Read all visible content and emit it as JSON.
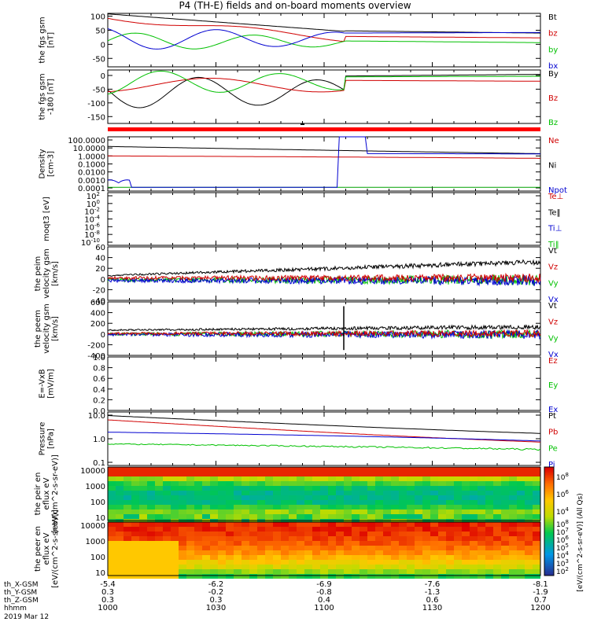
{
  "title": "P4 (TH-E) fields and on-board moments overview",
  "date_label": "2019 Mar 12",
  "ephemeris": {
    "row_labels": [
      "th_X-GSM",
      "th_Y-GSM",
      "th_Z-GSM",
      "hhmm"
    ],
    "columns": [
      {
        "x": "-5.4",
        "y": "0.3",
        "z": "0.3",
        "hhmm": "1000"
      },
      {
        "x": "-6.2",
        "y": "-0.2",
        "z": "0.3",
        "hhmm": "1030"
      },
      {
        "x": "-6.9",
        "y": "-0.8",
        "z": "0.4",
        "hhmm": "1100"
      },
      {
        "x": "-7.6",
        "y": "-1.3",
        "z": "0.6",
        "hhmm": "1130"
      },
      {
        "x": "-8.1",
        "y": "-1.9",
        "z": "0.7",
        "hhmm": "1200"
      }
    ]
  },
  "colorbar": {
    "label": "[eV/(cm^2-s-sr-eV)] (All Qs)",
    "ticks_top": [
      "10^8",
      "10^6",
      "10^4"
    ],
    "ticks_bottom": [
      "10^8",
      "10^7",
      "10^6",
      "10^5",
      "10^4",
      "10^3",
      "10^2"
    ]
  },
  "chart_data": [
    {
      "type": "line",
      "ylabel": "the fgs gsm [nT]",
      "ylim": [
        -80,
        110
      ],
      "yticks": [
        "100",
        "50",
        "0",
        "-50"
      ],
      "legend": [
        {
          "name": "Bt",
          "color": "#000000"
        },
        {
          "name": "bz",
          "color": "#d00000"
        },
        {
          "name": "by",
          "color": "#00c000"
        },
        {
          "name": "bx",
          "color": "#0000d0"
        }
      ]
    },
    {
      "type": "line",
      "ylabel": "the fgs gsm -180 [nT]",
      "ylim": [
        -175,
        20
      ],
      "yticks": [
        "0",
        "-50",
        "-100",
        "-150"
      ],
      "legend": [
        {
          "name": "By",
          "color": "#000000"
        },
        {
          "name": "Bz",
          "color": "#d00000"
        },
        {
          "name": "Bz",
          "color": "#00c000"
        }
      ]
    },
    {
      "type": "line",
      "ylabel": "Density [cm-3]",
      "log": true,
      "yticks": [
        "100.0000",
        "10.0000",
        "1.0000",
        "0.1000",
        "0.0100",
        "0.0010",
        "0.0001"
      ],
      "legend": [
        {
          "name": "Ne",
          "color": "#d00000"
        },
        {
          "name": "Ni",
          "color": "#000000"
        },
        {
          "name": "Npot",
          "color": "#0000d0"
        }
      ]
    },
    {
      "type": "line",
      "ylabel": "moqt3 [eV]",
      "log": true,
      "yticks": [
        "10^2",
        "10^0",
        "10^-2",
        "10^-4",
        "10^-6",
        "10^-8",
        "10^-10"
      ],
      "legend": [
        {
          "name": "Te⊥",
          "color": "#d00000"
        },
        {
          "name": "Te‖",
          "color": "#000000"
        },
        {
          "name": "Ti⊥",
          "color": "#0000d0"
        },
        {
          "name": "Ti‖",
          "color": "#00c000"
        }
      ]
    },
    {
      "type": "line",
      "ylabel": "the peim velocity gsm [km/s]",
      "ylim": [
        -40,
        60
      ],
      "yticks": [
        "60",
        "40",
        "20",
        "0",
        "-20",
        "-40"
      ],
      "legend": [
        {
          "name": "Vt",
          "color": "#000000"
        },
        {
          "name": "Vz",
          "color": "#d00000"
        },
        {
          "name": "Vy",
          "color": "#00c000"
        },
        {
          "name": "Vx",
          "color": "#0000d0"
        }
      ]
    },
    {
      "type": "line",
      "ylabel": "the peem velocity gsm [km/s]",
      "ylim": [
        -400,
        600
      ],
      "yticks": [
        "600",
        "400",
        "200",
        "0",
        "-200",
        "-400"
      ],
      "legend": [
        {
          "name": "Vt",
          "color": "#000000"
        },
        {
          "name": "Vz",
          "color": "#d00000"
        },
        {
          "name": "Vy",
          "color": "#00c000"
        },
        {
          "name": "Vx",
          "color": "#0000d0"
        }
      ]
    },
    {
      "type": "line",
      "ylabel": "E=-VxB [mV/m]",
      "ylim": [
        0,
        1
      ],
      "yticks": [
        "1.0",
        "0.8",
        "0.6",
        "0.4",
        "0.2",
        "0.0"
      ],
      "legend": [
        {
          "name": "Ez",
          "color": "#d00000"
        },
        {
          "name": "Ey",
          "color": "#00c000"
        },
        {
          "name": "Ex",
          "color": "#0000d0"
        }
      ]
    },
    {
      "type": "line",
      "ylabel": "Pressure [nPa]",
      "log": true,
      "yticks": [
        "10.0",
        "1.0",
        "0.1"
      ],
      "legend": [
        {
          "name": "Pt",
          "color": "#000000"
        },
        {
          "name": "Pb",
          "color": "#d00000"
        },
        {
          "name": "Pe",
          "color": "#00c000"
        },
        {
          "name": "Pi",
          "color": "#0000d0"
        }
      ]
    },
    {
      "type": "heatmap",
      "ylabel": "the peir en eflux eV [eV/(cm^2-s-sr-eV)]",
      "log": true,
      "yticks": [
        "10000",
        "1000",
        "100",
        "10"
      ]
    },
    {
      "type": "heatmap",
      "ylabel": "the peer en eflux eV [eV/(cm^2-s-sr-eV)]",
      "log": true,
      "yticks": [
        "10000",
        "1000",
        "100",
        "10"
      ]
    }
  ]
}
